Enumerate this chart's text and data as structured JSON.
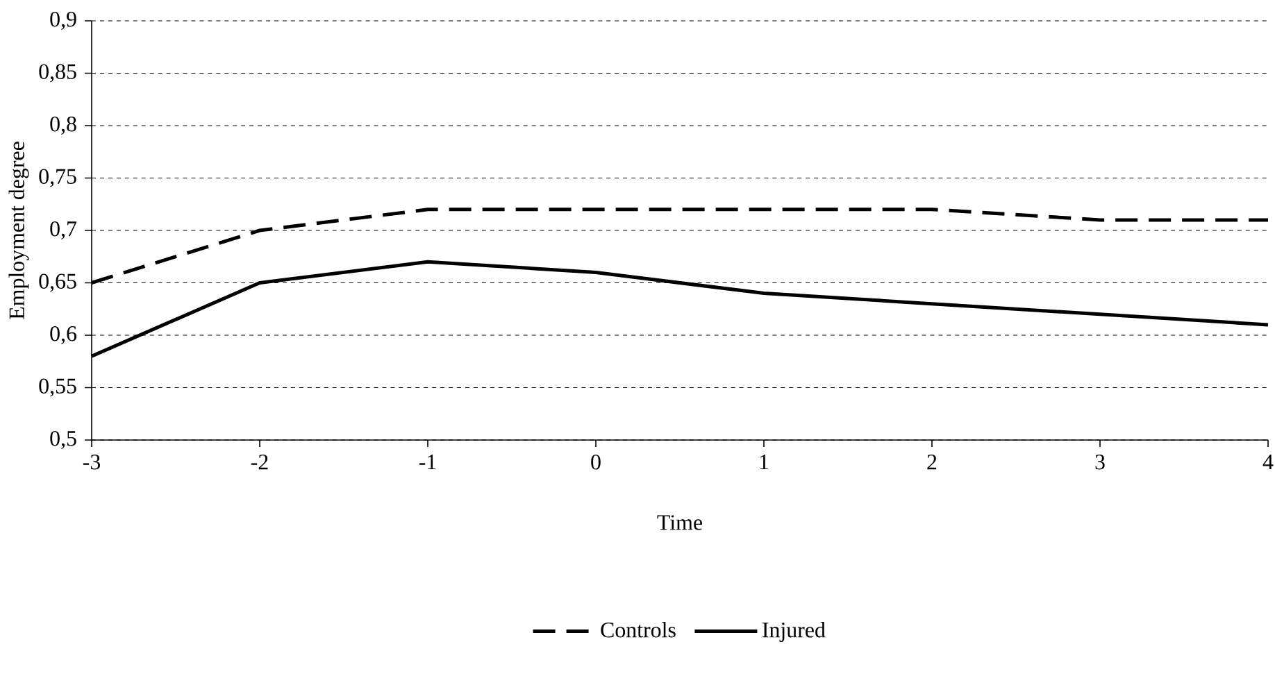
{
  "chart_data": {
    "type": "line",
    "xlabel": "Time",
    "ylabel": "Employment degree",
    "x": [
      -3,
      -2,
      -1,
      0,
      1,
      2,
      3,
      4
    ],
    "series": [
      {
        "name": "Controls",
        "color": "#000000",
        "line_style": "dashed",
        "values": [
          0.65,
          0.7,
          0.72,
          0.72,
          0.72,
          0.72,
          0.71,
          0.71
        ]
      },
      {
        "name": "Injured",
        "color": "#000000",
        "line_style": "solid",
        "values": [
          0.58,
          0.65,
          0.67,
          0.66,
          0.64,
          0.63,
          0.62,
          0.61
        ]
      }
    ],
    "xlim": [
      -3,
      4
    ],
    "xticks": [
      -3,
      -2,
      -1,
      0,
      1,
      2,
      3,
      4
    ],
    "ylim": [
      0.5,
      0.9
    ],
    "yticks": [
      {
        "value": 0.5,
        "label": "0,5"
      },
      {
        "value": 0.55,
        "label": "0,55"
      },
      {
        "value": 0.6,
        "label": "0,6"
      },
      {
        "value": 0.65,
        "label": "0,65"
      },
      {
        "value": 0.7,
        "label": "0,7"
      },
      {
        "value": 0.75,
        "label": "0,75"
      },
      {
        "value": 0.8,
        "label": "0,8"
      },
      {
        "value": 0.85,
        "label": "0,85"
      },
      {
        "value": 0.9,
        "label": "0,9"
      }
    ],
    "grid": "y",
    "legend": "bottom",
    "marker": "none"
  }
}
